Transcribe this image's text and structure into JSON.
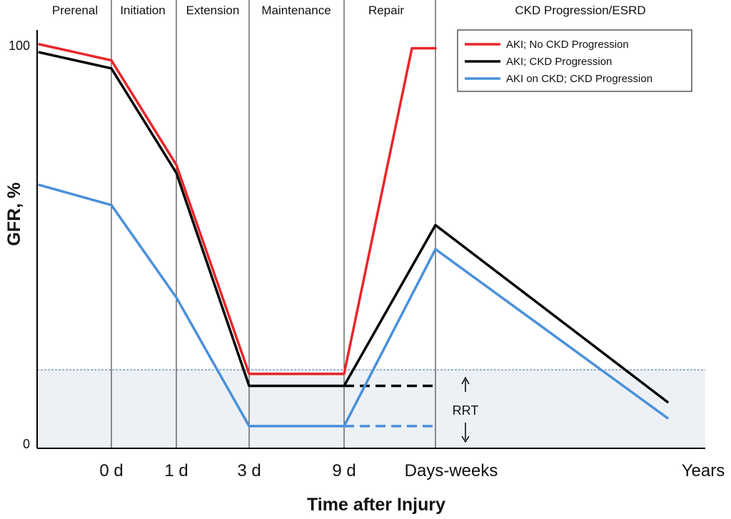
{
  "chart_data": {
    "type": "line",
    "title": "",
    "xlabel": "Time after Injury",
    "ylabel": "GFR, %",
    "x_ticks": [
      "0 d",
      "1 d",
      "3 d",
      "9 d",
      "Days-weeks",
      "Years"
    ],
    "y_ticks": [
      "100",
      "0"
    ],
    "ylim": [
      0,
      100
    ],
    "phases": [
      "Prerenal",
      "Initiation",
      "Extension",
      "Maintenance",
      "Repair",
      "CKD Progression/ESRD"
    ],
    "rrt_threshold": 19,
    "rrt_label": "RRT",
    "grid": false,
    "legend_position": "top-right",
    "colors": {
      "red": "#e8262b",
      "black": "#000000",
      "blue": "#4a90d9",
      "shade": "#edf1f6"
    },
    "series": [
      {
        "name": "AKI; No CKD Progression",
        "color": "#e8262b",
        "points": [
          [
            "start",
            100
          ],
          [
            "0 d",
            96
          ],
          [
            "1 d",
            70
          ],
          [
            "3 d",
            18
          ],
          [
            "9 d",
            18
          ],
          [
            "Repair",
            99
          ],
          [
            "Days-weeks",
            99
          ]
        ]
      },
      {
        "name": "AKI; CKD Progression",
        "color": "#000000",
        "points": [
          [
            "start",
            98
          ],
          [
            "0 d",
            94
          ],
          [
            "1 d",
            68
          ],
          [
            "3 d",
            15
          ],
          [
            "9 d",
            15
          ],
          [
            "Days-weeks",
            55
          ],
          [
            "Years",
            11
          ]
        ],
        "dashed_extension": [
          [
            "9 d",
            15
          ],
          [
            "Days-weeks",
            15
          ]
        ]
      },
      {
        "name": "AKI on CKD; CKD Progression",
        "color": "#4a90d9",
        "points": [
          [
            "start",
            65
          ],
          [
            "0 d",
            60
          ],
          [
            "1 d",
            37
          ],
          [
            "3 d",
            5
          ],
          [
            "9 d",
            5
          ],
          [
            "Days-weeks",
            49
          ],
          [
            "Years",
            7
          ]
        ],
        "dashed_extension": [
          [
            "9 d",
            5
          ],
          [
            "Days-weeks",
            5
          ]
        ]
      }
    ]
  }
}
